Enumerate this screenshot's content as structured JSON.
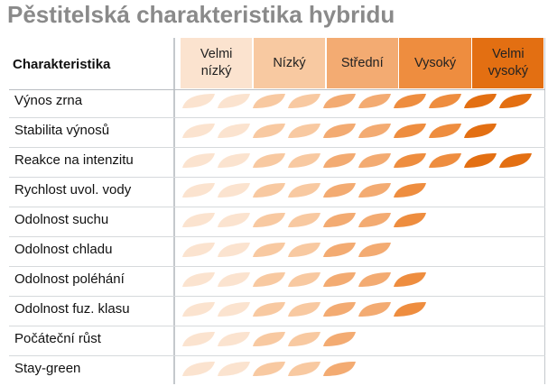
{
  "title": "Pěstitelská charakteristika hybridu",
  "column_header": "Charakteristika",
  "levels": [
    {
      "label": "Velmi\nnízký",
      "color": "#fbe3cf"
    },
    {
      "label": "Nízký",
      "color": "#f8c9a1"
    },
    {
      "label": "Střední",
      "color": "#f3ab72"
    },
    {
      "label": "Vysoký",
      "color": "#ee8d3f"
    },
    {
      "label": "Velmi\nvysoký",
      "color": "#e36f12"
    }
  ],
  "chart_data": {
    "type": "table",
    "title": "Pěstitelská charakteristika hybridu",
    "scale": "počet ikon (1–10)",
    "rows": [
      {
        "label": "Výnos zrna",
        "value": 10
      },
      {
        "label": "Stabilita výnosů",
        "value": 9
      },
      {
        "label": "Reakce na intenzitu",
        "value": 10
      },
      {
        "label": "Rychlost uvol. vody",
        "value": 7
      },
      {
        "label": "Odolnost suchu",
        "value": 7
      },
      {
        "label": "Odolnost chladu",
        "value": 6
      },
      {
        "label": "Odolnost poléhání",
        "value": 7
      },
      {
        "label": "Odolnost fuz. klasu",
        "value": 7
      },
      {
        "label": "Počáteční růst",
        "value": 5
      },
      {
        "label": "Stay-green",
        "value": 5
      }
    ]
  }
}
